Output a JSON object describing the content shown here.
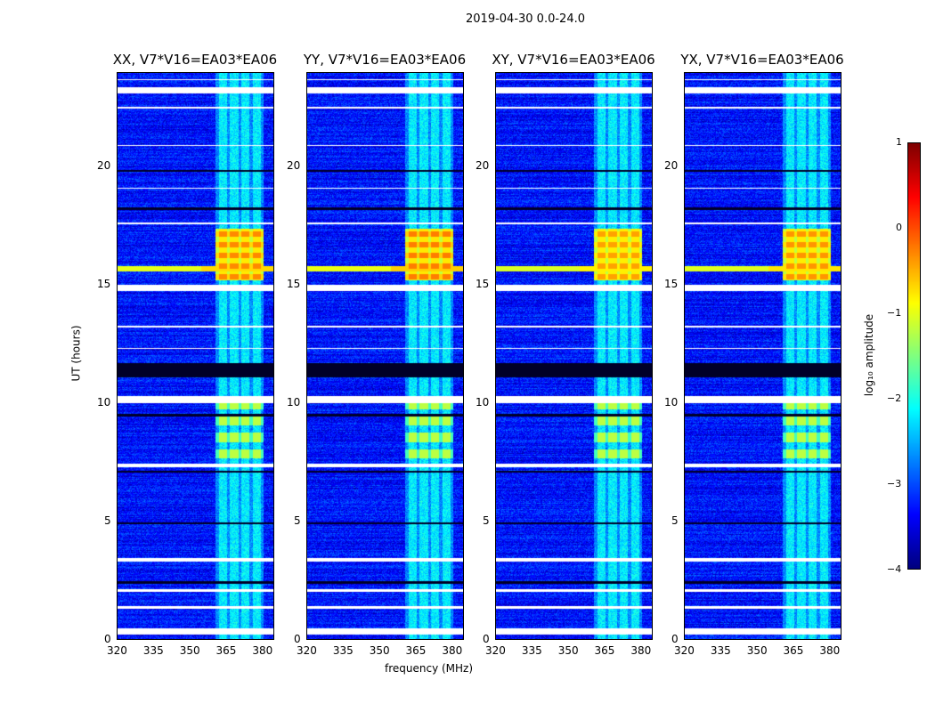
{
  "chart_data": {
    "type": "heatmap",
    "title": "2019-04-30 0.0-24.0",
    "xlabel": "frequency (MHz)",
    "ylabel": "UT (hours)",
    "xlim": [
      320,
      385
    ],
    "ylim": [
      0,
      24
    ],
    "xticks": [
      320,
      335,
      350,
      365,
      380
    ],
    "yticks": [
      0,
      5,
      10,
      15,
      20
    ],
    "panels": [
      {
        "title": "XX, V7*V16=EA03*EA06",
        "event_strength": 1.0
      },
      {
        "title": "YY, V7*V16=EA03*EA06",
        "event_strength": 1.1
      },
      {
        "title": "XY, V7*V16=EA03*EA06",
        "event_strength": 0.8
      },
      {
        "title": "YX, V7*V16=EA03*EA06",
        "event_strength": 0.9
      }
    ],
    "colorbar": {
      "label": "log₁₀ amplitude",
      "range": [
        -4,
        1
      ],
      "ticks": [
        "1",
        "0",
        "−1",
        "−2",
        "−3",
        "−4"
      ],
      "colormap": "jet"
    },
    "features": {
      "background_level": -3.3,
      "rfi_band_mhz": [
        361,
        381
      ],
      "rfi_band_level": -2.2,
      "event_hours": [
        15.2,
        17.4
      ],
      "event_line_hour": 15.7,
      "mid_band_hours": [
        7.5,
        10.0
      ],
      "flagged_hours": [
        [
          0.2,
          0.45
        ],
        [
          1.3,
          1.4
        ],
        [
          2.0,
          2.1
        ],
        [
          3.3,
          3.45
        ],
        [
          7.3,
          7.45
        ],
        [
          10.0,
          10.3
        ],
        [
          12.3,
          12.35
        ],
        [
          13.2,
          13.3
        ],
        [
          14.75,
          15.0
        ],
        [
          17.6,
          17.65
        ],
        [
          19.1,
          19.15
        ],
        [
          20.9,
          20.95
        ],
        [
          22.5,
          22.55
        ],
        [
          23.15,
          23.4
        ],
        [
          23.7,
          23.75
        ]
      ],
      "dark_hours": [
        [
          2.35,
          2.45
        ],
        [
          4.85,
          4.95
        ],
        [
          7.05,
          7.15
        ],
        [
          9.45,
          9.55
        ],
        [
          11.1,
          11.7
        ],
        [
          19.8,
          19.9
        ],
        [
          18.2,
          18.3
        ]
      ]
    }
  }
}
